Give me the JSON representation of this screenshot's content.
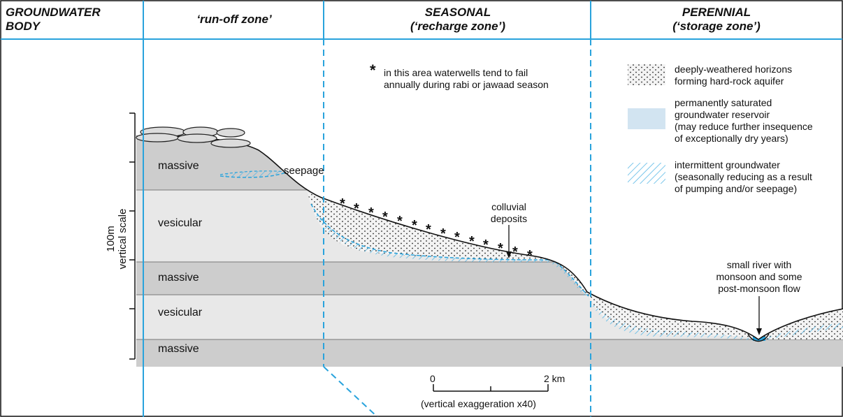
{
  "headers": {
    "groundwater_body": "GROUNDWATER\nBODY",
    "runoff_zone": "‘run-off  zone’",
    "seasonal": "SEASONAL\n(‘recharge zone’)",
    "perennial": "PERENNIAL\n(‘storage zone’)"
  },
  "layers": {
    "massive_top": "massive",
    "vesicular_upper": "vesicular",
    "massive_middle": "massive",
    "vesicular_lower": "vesicular",
    "massive_bottom": "massive"
  },
  "annotations": {
    "seepage": "seepage",
    "wells_star": "*",
    "wells_note": "in this area waterwells tend to fail\nannually during rabi or jawaad season",
    "colluvial": "colluvial\ndeposits",
    "river": "small river with\nmonsoon and some\npost-monsoon flow"
  },
  "scale": {
    "vertical": "100m\nvertical scale",
    "km_start": "0",
    "km_end": "2 km",
    "exaggeration": "(vertical exaggeration x40)"
  },
  "legend": {
    "aquifer": "deeply-weathered horizons\nforming hard-rock aquifer",
    "reservoir": "permanently saturated\ngroundwater reservoir\n(may reduce further insequence\nof exceptionally dry years)",
    "intermittent": "intermittent groundwater\n(seasonally reducing as a result\nof pumping and/or seepage)"
  },
  "colors": {
    "zone_line": "#29a3dc",
    "massive": "#cdcdcd",
    "vesicular": "#e8e8e8",
    "saturated_blue": "#d2e4f1",
    "intermittent_hatch": "#5ab9e6",
    "outline": "#111111"
  }
}
